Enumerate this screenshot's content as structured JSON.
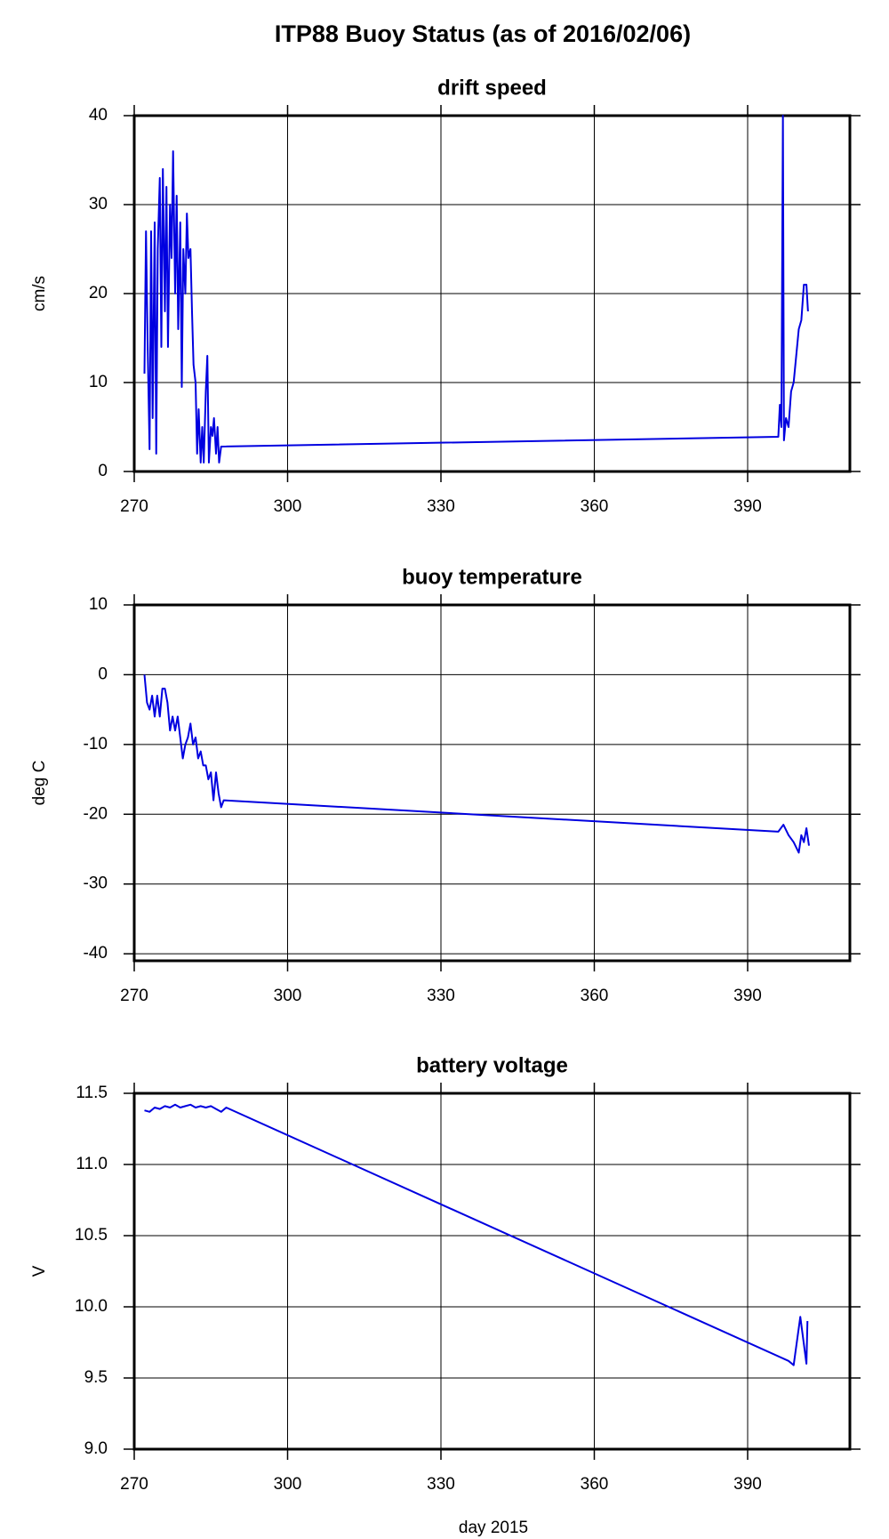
{
  "title": "ITP88 Buoy Status (as of 2016/02/06)",
  "xlabel": "day 2015",
  "chart_data": [
    {
      "type": "line",
      "title": "drift speed",
      "ylabel": "cm/s",
      "x": [
        272,
        272.3,
        272.6,
        273,
        273.3,
        273.6,
        274,
        274.3,
        274.6,
        275,
        275.3,
        275.6,
        276,
        276.3,
        276.6,
        277,
        277.3,
        277.6,
        278,
        278.3,
        278.6,
        279,
        279.3,
        279.6,
        280,
        280.3,
        280.6,
        281,
        281.3,
        281.6,
        282,
        282.3,
        282.6,
        283,
        283.3,
        283.6,
        284,
        284.3,
        284.6,
        285,
        285.3,
        285.6,
        286,
        286.3,
        286.6,
        287,
        396,
        396.3,
        396.6,
        396.9,
        397.1,
        397.5,
        398,
        398.5,
        399,
        399.5,
        400,
        400.5,
        401,
        401.5,
        401.8
      ],
      "series": [
        {
          "color": "#0000e0",
          "values": [
            11,
            27,
            15,
            2.5,
            27,
            6,
            28,
            2,
            25,
            33,
            14,
            34,
            18,
            32,
            14,
            30,
            24,
            36,
            20,
            31,
            16,
            28,
            9.5,
            25,
            20,
            29,
            24,
            25,
            18,
            12,
            10,
            2,
            7,
            1,
            5,
            1,
            9,
            13,
            1,
            5,
            4,
            6,
            2,
            5,
            1,
            2.8,
            3.9,
            7.5,
            5,
            40,
            3.5,
            6,
            5,
            9,
            10,
            13,
            16,
            17,
            21,
            21,
            18
          ]
        }
      ],
      "xlim": [
        270,
        410
      ],
      "xticks": [
        270,
        300,
        330,
        360,
        390
      ],
      "ylim": [
        0,
        40
      ],
      "yticks": [
        0,
        10,
        20,
        30,
        40
      ],
      "grid": true
    },
    {
      "type": "line",
      "title": "buoy temperature",
      "ylabel": "deg C",
      "x": [
        272,
        272.5,
        273,
        273.5,
        274,
        274.5,
        275,
        275.5,
        276,
        276.5,
        277,
        277.5,
        278,
        278.5,
        279,
        279.5,
        280,
        280.5,
        281,
        281.5,
        282,
        282.5,
        283,
        283.5,
        284,
        284.5,
        285,
        285.5,
        286,
        286.5,
        287,
        287.5,
        396,
        397,
        398,
        399,
        400,
        400.5,
        401,
        401.5,
        402
      ],
      "series": [
        {
          "color": "#0000e0",
          "values": [
            0,
            -4,
            -5,
            -3,
            -6,
            -3,
            -6,
            -2,
            -2,
            -4,
            -8,
            -6,
            -8,
            -6,
            -9,
            -12,
            -10,
            -9,
            -7,
            -10,
            -9,
            -12,
            -11,
            -13,
            -13,
            -15,
            -14,
            -18,
            -14,
            -17,
            -19,
            -18,
            -22.5,
            -21.5,
            -23,
            -24,
            -25.5,
            -23,
            -24,
            -22,
            -24.5
          ]
        }
      ],
      "xlim": [
        270,
        410
      ],
      "xticks": [
        270,
        300,
        330,
        360,
        390
      ],
      "ylim": [
        -41,
        10
      ],
      "yticks": [
        -40,
        -30,
        -20,
        -10,
        0,
        10
      ],
      "grid": true
    },
    {
      "type": "line",
      "title": "battery voltage",
      "ylabel": "V",
      "x": [
        272,
        273,
        274,
        275,
        276,
        277,
        278,
        279,
        280,
        281,
        282,
        283,
        284,
        285,
        286,
        287,
        288,
        398,
        399,
        400.3,
        401.5,
        401.7
      ],
      "series": [
        {
          "color": "#0000e0",
          "values": [
            11.38,
            11.37,
            11.4,
            11.39,
            11.41,
            11.4,
            11.42,
            11.4,
            11.41,
            11.42,
            11.4,
            11.41,
            11.4,
            11.41,
            11.39,
            11.37,
            11.4,
            9.62,
            9.59,
            9.93,
            9.6,
            9.9
          ]
        }
      ],
      "xlim": [
        270,
        410
      ],
      "xticks": [
        270,
        300,
        330,
        360,
        390
      ],
      "ylim": [
        9,
        11.5
      ],
      "yticks": [
        {
          "value": 9,
          "label": "9.0"
        },
        9.5,
        {
          "value": 10,
          "label": "10.0"
        },
        10.5,
        {
          "value": 11,
          "label": "11.0"
        },
        11.5
      ],
      "grid": true
    }
  ]
}
